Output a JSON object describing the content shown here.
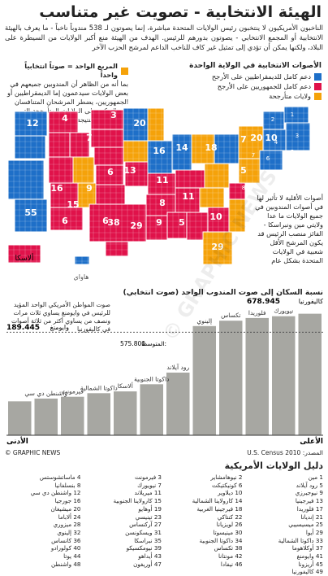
{
  "title": "الهيئة الانتخابية - تصويت غير متناسب",
  "intro": "الناخبون الأمريكيون لا ينتخبون رئيس الولايات المتحدة مباشرة، إنما يصوتون لـ 538 مندوباً ناخباً - ما يعرف بالهيئة الانتخابية أو المجمع الانتخابي - يصوتون بدورهم للرئيس. الهدف من الهيئة منع أكبر الولايات من السيطرة على البلاد، ولكنها يمكن أن تؤدي إلى تمثيل غير كاف للناخب الداعم لمرشح الحزب الآخر",
  "legend": {
    "title": "الأصوات الانتخابية في الولاية الواحدة",
    "items": [
      {
        "label": "دعم كامل للديمقراطيين على الأرجح",
        "color": "#1e6fc8"
      },
      {
        "label": "دعم كامل للجمهوريين على الأرجح",
        "color": "#e0124a"
      },
      {
        "label": "ولايات متأرجحة",
        "color": "#f5a20a"
      }
    ]
  },
  "swing_note": {
    "heading": "المربع الواحد = صوتاً انتخابياً واحداً",
    "text": "بما أنه من الظاهر أن المندوبين جميعهم في بعض الولايات سيدعمون إما الديمقراطيين أو الجمهوريين، يضطر المرشحان المتنافسان إلى التركيز على الولايات المتأرجحة التي تقرر بدورها النتيجة النهائية"
  },
  "side_note": "أصوات الأقلية لا تأثير لها في أصوات المندوبين في جميع الولايات ما عدا ولايتي مين ونبراسكا - الفائز منصب الرئيس قد يكون المرشح الأقل شعبية في الولايات المتحدة بشكل عام",
  "map": {
    "alaska_label": "ألاسكا",
    "hawaii_label": "هاواي",
    "numbers": [
      {
        "n": "55",
        "c": "#1e6fc8"
      },
      {
        "n": "38",
        "c": "#e0124a"
      },
      {
        "n": "29",
        "c": "#1e6fc8"
      },
      {
        "n": "29",
        "c": "#f5a20a"
      },
      {
        "n": "20",
        "c": "#1e6fc8"
      },
      {
        "n": "20",
        "c": "#f5a20a"
      },
      {
        "n": "18",
        "c": "#f5a20a"
      },
      {
        "n": "16",
        "c": "#e0124a"
      },
      {
        "n": "16",
        "c": "#e0124a"
      },
      {
        "n": "15",
        "c": "#f5a20a"
      },
      {
        "n": "14",
        "c": "#1e6fc8"
      },
      {
        "n": "13",
        "c": "#f5a20a"
      },
      {
        "n": "12",
        "c": "#1e6fc8"
      },
      {
        "n": "11",
        "c": "#e0124a"
      },
      {
        "n": "11",
        "c": "#e0124a"
      },
      {
        "n": "10",
        "c": "#1e6fc8"
      },
      {
        "n": "10",
        "c": "#e0124a"
      },
      {
        "n": "9",
        "c": "#e0124a"
      },
      {
        "n": "9",
        "c": "#f5a20a"
      },
      {
        "n": "9",
        "c": "#e0124a"
      },
      {
        "n": "8",
        "c": "#e0124a"
      },
      {
        "n": "7",
        "c": "#e0124a"
      },
      {
        "n": "7",
        "c": "#1e6fc8"
      },
      {
        "n": "6",
        "c": "#e0124a"
      },
      {
        "n": "6",
        "c": "#f5a20a"
      },
      {
        "n": "6",
        "c": "#f5a20a"
      },
      {
        "n": "5",
        "c": "#e0124a"
      },
      {
        "n": "5",
        "c": "#1e6fc8"
      },
      {
        "n": "4",
        "c": "#1e6fc8"
      },
      {
        "n": "3",
        "c": "#e0124a"
      }
    ],
    "codes": [
      {
        "n": "1",
        "c": "#1e6fc8"
      },
      {
        "n": "2",
        "c": "#f5a20a"
      },
      {
        "n": "3",
        "c": "#1e6fc8"
      },
      {
        "n": "4",
        "c": "#1e6fc8"
      },
      {
        "n": "5",
        "c": "#1e6fc8"
      },
      {
        "n": "6",
        "c": "#1e6fc8"
      },
      {
        "n": "7",
        "c": "#1e6fc8"
      },
      {
        "n": "8",
        "c": "#1e6fc8"
      },
      {
        "n": "9",
        "c": "#1e6fc8"
      }
    ]
  },
  "population": {
    "title": "نسبة السكان إلى صوت المندوب الواحد (صوت انتخابي)",
    "highest_label": "الأعلى",
    "lowest_label": "الأدنى",
    "average_label": "المتوسط:",
    "average_value": "575.800",
    "top_state": "كاليفورنيا",
    "top_value": "678.945",
    "bottom_state": "وايومنغ",
    "bottom_value": "189.445",
    "note": "صوت المواطن الأمريكي الواحد المؤيد للرئيس في وايومنغ يساوي ثلاث مرات ونصف من يساوي أكثر من ثلاثة أصوات في كاليفورنيا",
    "bars": [
      {
        "state": "كاليفورنيا",
        "value": 678.945
      },
      {
        "state": "نيويورك",
        "value": 665
      },
      {
        "state": "فلوريدا",
        "value": 655
      },
      {
        "state": "تكساس",
        "value": 640
      },
      {
        "state": "إلينوي",
        "value": 610
      },
      {
        "state": "رود آيلاند",
        "value": 350
      },
      {
        "state": "داكوتا الجنوبية",
        "value": 285
      },
      {
        "state": "ألاسكا",
        "value": 245
      },
      {
        "state": "داكوتا الشمالية",
        "value": 235
      },
      {
        "state": "فيرمونت",
        "value": 215
      },
      {
        "state": "واشنطن دي سي",
        "value": 205
      },
      {
        "state": "وايومنغ",
        "value": 189.445
      }
    ]
  },
  "credit": "© GRAPHIC NEWS",
  "source": "المصدر: U.S. Census 2010",
  "states_title": "دليل الولايات الأمريكية",
  "states": [
    "1 مين",
    "2 نيوهامشاير",
    "3 فيرمونت",
    "4 ماساتشوستس",
    "5 رود آيلاند",
    "6 كونيكتيكت",
    "7 نيويورك",
    "8 بنسلفانيا",
    "9 نيوجيرزي",
    "10 ديلاوير",
    "11 ميريلاند",
    "12 واشنطن دي سي",
    "13 فيرجينيا",
    "14 كارولاينا الشمالية",
    "15 كارولاينا الجنوبية",
    "16 جورجيا",
    "17 فلوريدا",
    "18 فيرجينيا الغربية",
    "19 أوهايو",
    "20 ميشيغان",
    "21 إنديانا",
    "22 كنتاكي",
    "23 تينيسي",
    "24 ألاباما",
    "25 ميسيسيبي",
    "26 لويزيانا",
    "27 آركنساس",
    "28 ميزوري",
    "29 أيوا",
    "30 مينيسوتا",
    "31 ويسكونسن",
    "32 إلينوي",
    "33 داكوتا الشمالية",
    "34 داكوتا الجنوبية",
    "35 نبراسكا",
    "36 كانساس",
    "37 أوكلاهوما",
    "38 تكساس",
    "39 نيومكسيكو",
    "40 كولورادو",
    "41 وايومنغ",
    "42 مونتانا",
    "43 أيداهو",
    "44 يوتا",
    "45 أريزونا",
    "46 نيفادا",
    "47 أوريغون",
    "48 واشنطن",
    "49 كاليفورنيا"
  ],
  "watermark": "© GRAPHIC NEWS"
}
